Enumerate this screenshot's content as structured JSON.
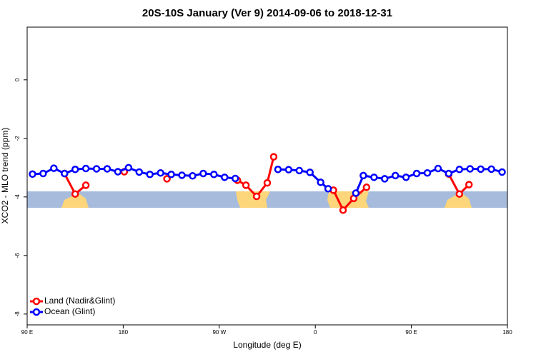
{
  "chart_data": {
    "type": "line",
    "title": "20S-10S January (Ver 9)   2014-09-06 to 2018-12-31",
    "x_label": "Longitude (deg E)",
    "y_label": "XCO2 - MLO trend (ppm)",
    "xlim": [
      90,
      540
    ],
    "xticks": [
      {
        "value": 90,
        "label": "90 E"
      },
      180,
      {
        "value": 270,
        "label": "90 W"
      },
      {
        "value": 360,
        "label": "0"
      },
      {
        "value": 450,
        "label": "90 E"
      },
      {
        "value": 540,
        "label": "180"
      }
    ],
    "ylim": [
      -8.37,
      1.8
    ],
    "yticks": [
      0,
      -2,
      -4,
      -6,
      -8
    ],
    "legend": "bottom-left",
    "series": [
      {
        "name": "Land (Nadir&Glint)",
        "color": "#ff0000",
        "x": [
          125,
          135,
          145,
          null,
          181,
          null,
          221,
          null,
          287,
          295,
          305,
          315,
          321,
          null,
          377,
          386,
          396,
          408,
          null,
          485,
          495,
          504
        ],
        "values": [
          -3.2,
          -3.9,
          -3.6,
          null,
          -3.14,
          null,
          -3.38,
          null,
          -3.43,
          -3.6,
          -3.98,
          -3.52,
          -2.63,
          null,
          -3.77,
          -4.45,
          -4.05,
          -3.67,
          null,
          -3.22,
          -3.9,
          -3.58
        ]
      },
      {
        "name": "Ocean (Glint)",
        "color": "#0000ff",
        "x": [
          95,
          105,
          115,
          125,
          135,
          145,
          155,
          165,
          175,
          185,
          195,
          205,
          215,
          225,
          235,
          245,
          255,
          265,
          275,
          285,
          null,
          325,
          335,
          345,
          355,
          365,
          372,
          null,
          398,
          405,
          415,
          425,
          435,
          445,
          455,
          465,
          475,
          485,
          495,
          505,
          515,
          525,
          535
        ],
        "values": [
          -3.22,
          -3.2,
          -3.02,
          -3.2,
          -3.06,
          -3.03,
          -3.04,
          -3.04,
          -3.14,
          -3.0,
          -3.15,
          -3.23,
          -3.18,
          -3.23,
          -3.26,
          -3.28,
          -3.2,
          -3.23,
          -3.33,
          -3.37,
          null,
          -3.06,
          -3.07,
          -3.1,
          -3.16,
          -3.5,
          -3.72,
          null,
          -3.87,
          -3.27,
          -3.33,
          -3.38,
          -3.27,
          -3.33,
          -3.2,
          -3.18,
          -3.03,
          -3.2,
          -3.06,
          -3.04,
          -3.05,
          -3.05,
          -3.15
        ]
      }
    ]
  }
}
